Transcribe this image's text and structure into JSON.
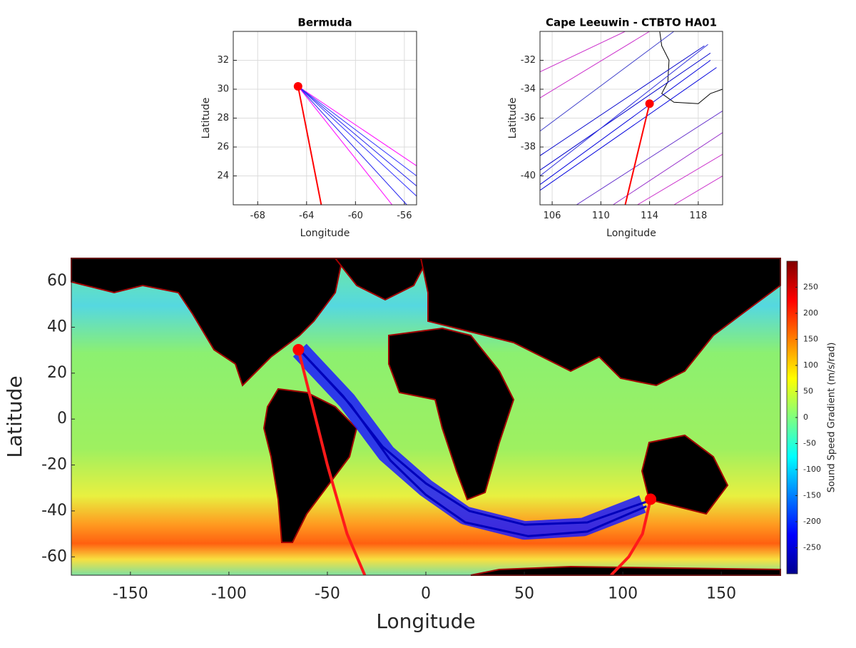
{
  "chart_data": [
    {
      "type": "map",
      "title": "Bermuda",
      "xlabel": "Longitude",
      "ylabel": "Latitude",
      "xlim": [
        -70,
        -55
      ],
      "xticks": [
        -68,
        -64,
        -60,
        -56
      ],
      "ylim": [
        22,
        34
      ],
      "yticks": [
        24,
        26,
        28,
        30,
        32
      ],
      "grid": true,
      "markers": {
        "color": "#ff0000",
        "x": [
          -64.7
        ],
        "values": [
          30.2
        ]
      },
      "tracks": [
        {
          "color": "#ff00ff",
          "x": [
            -64.7,
            -55
          ],
          "values": [
            30.2,
            24.7
          ]
        },
        {
          "color": "#3333ff",
          "x": [
            -64.7,
            -55
          ],
          "values": [
            30.2,
            24.0
          ]
        },
        {
          "color": "#2222ee",
          "x": [
            -64.7,
            -55
          ],
          "values": [
            30.2,
            23.3
          ]
        },
        {
          "color": "#3333ff",
          "x": [
            -64.7,
            -55
          ],
          "values": [
            30.2,
            22.6
          ]
        },
        {
          "color": "#2222ee",
          "x": [
            -64.7,
            -55.8
          ],
          "values": [
            30.2,
            22
          ]
        },
        {
          "color": "#ff00ff",
          "x": [
            -64.7,
            -57
          ],
          "values": [
            30.2,
            22
          ]
        },
        {
          "color": "#ff0000",
          "x": [
            -64.7,
            -62.8
          ],
          "values": [
            30.2,
            22
          ]
        }
      ]
    },
    {
      "type": "map",
      "title": "Cape Leeuwin - CTBTO HA01",
      "xlabel": "Longitude",
      "ylabel": "Latitude",
      "xlim": [
        105,
        120
      ],
      "xticks": [
        106,
        110,
        114,
        118
      ],
      "ylim": [
        -42,
        -30
      ],
      "yticks": [
        -40,
        -38,
        -36,
        -34,
        -32
      ],
      "grid": true,
      "markers": {
        "color": "#ff0000",
        "x": [
          114.0
        ],
        "values": [
          -35.0
        ]
      },
      "tracks": [
        {
          "color": "#000000",
          "x": [
            114.8,
            115.0,
            115.6,
            115.5,
            115.0,
            116.0,
            118.0,
            119.0,
            120.0
          ],
          "values": [
            -29.8,
            -31.0,
            -32.0,
            -33.5,
            -34.3,
            -34.9,
            -35.0,
            -34.3,
            -34.0
          ]
        },
        {
          "color": "#cc33cc",
          "x": [
            105,
            112
          ],
          "values": [
            -32.8,
            -30
          ]
        },
        {
          "color": "#cc33cc",
          "x": [
            105,
            114
          ],
          "values": [
            -34.6,
            -30
          ]
        },
        {
          "color": "#4444cc",
          "x": [
            105,
            116
          ],
          "values": [
            -36.9,
            -30
          ]
        },
        {
          "color": "#0000cc",
          "x": [
            105,
            118.5
          ],
          "values": [
            -38.6,
            -31.0
          ]
        },
        {
          "color": "#0000cc",
          "x": [
            105,
            119
          ],
          "values": [
            -39.6,
            -31.5
          ]
        },
        {
          "color": "#0000dd",
          "x": [
            105,
            119
          ],
          "values": [
            -40.6,
            -32.0
          ]
        },
        {
          "color": "#0000dd",
          "x": [
            105,
            119.5
          ],
          "values": [
            -41.0,
            -32.5
          ]
        },
        {
          "color": "#3333dd",
          "x": [
            105,
            118.8
          ],
          "values": [
            -40.0,
            -30.9
          ]
        },
        {
          "color": "#6633cc",
          "x": [
            108,
            120
          ],
          "values": [
            -42,
            -35.5
          ]
        },
        {
          "color": "#9933cc",
          "x": [
            111,
            120
          ],
          "values": [
            -42,
            -37
          ]
        },
        {
          "color": "#cc33cc",
          "x": [
            113,
            120
          ],
          "values": [
            -42,
            -38.5
          ]
        },
        {
          "color": "#cc33cc",
          "x": [
            116,
            120
          ],
          "values": [
            -42,
            -40
          ]
        },
        {
          "color": "#ff0000",
          "x": [
            114.0,
            112.0
          ],
          "values": [
            -35.0,
            -42
          ]
        }
      ]
    },
    {
      "type": "map",
      "xlabel": "Longitude",
      "ylabel": "Latitude",
      "xlim": [
        -180,
        180
      ],
      "xticks": [
        -150,
        -100,
        -50,
        0,
        50,
        100,
        150
      ],
      "ylim": [
        -68,
        70
      ],
      "yticks": [
        -60,
        -40,
        -20,
        0,
        20,
        40,
        60
      ],
      "grid": false,
      "markers": {
        "color": "#ff0000",
        "x": [
          -64.7,
          114.1
        ],
        "values": [
          30.2,
          -34.9
        ]
      },
      "tracks": [
        {
          "color": "#1a1aff",
          "x": [
            -64,
            -40,
            -20,
            0,
            20,
            50,
            80,
            110
          ],
          "values": [
            30,
            8,
            -15,
            -30,
            -42,
            -48.5,
            -47,
            -37
          ]
        },
        {
          "color": "#0000bb",
          "x": [
            -64,
            -42,
            -22,
            0,
            22,
            50,
            82,
            112
          ],
          "values": [
            30,
            10,
            -12,
            -28,
            -40,
            -46,
            -45,
            -36
          ]
        },
        {
          "color": "#0000bb",
          "x": [
            -64,
            -38,
            -18,
            0,
            20,
            52,
            82,
            112
          ],
          "values": [
            30,
            6,
            -18,
            -33,
            -45,
            -51,
            -49,
            -38
          ]
        },
        {
          "color": "#ff1a1a",
          "x": [
            -64.7,
            -50,
            -40,
            -31
          ],
          "values": [
            30.2,
            -20,
            -50,
            -68
          ]
        },
        {
          "color": "#ff1a1a",
          "x": [
            114.1,
            110,
            103,
            94
          ],
          "values": [
            -34.9,
            -50,
            -60,
            -68
          ]
        }
      ],
      "colorbar": {
        "label": "Sound Speed Gradient (m/s/rad)",
        "lim": [
          -300,
          300
        ],
        "ticks": [
          -250,
          -200,
          -150,
          -100,
          -50,
          0,
          50,
          100,
          150,
          200,
          250
        ]
      }
    }
  ]
}
